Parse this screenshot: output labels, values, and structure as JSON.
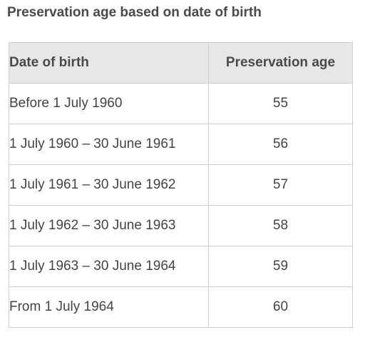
{
  "title": "Preservation age based on date of birth",
  "table": {
    "headers": [
      "Date of birth",
      "Preservation age"
    ],
    "rows": [
      [
        "Before 1 July 1960",
        "55"
      ],
      [
        "1 July 1960 – 30 June 1961",
        "56"
      ],
      [
        "1 July 1961 – 30 June 1962",
        "57"
      ],
      [
        "1 July 1962 – 30 June 1963",
        "58"
      ],
      [
        "1 July 1963 – 30 June 1964",
        "59"
      ],
      [
        "From 1 July 1964",
        "60"
      ]
    ]
  },
  "colors": {
    "header_bg": "#e6e7e9",
    "border": "#cfcfcf",
    "text": "#444444"
  }
}
